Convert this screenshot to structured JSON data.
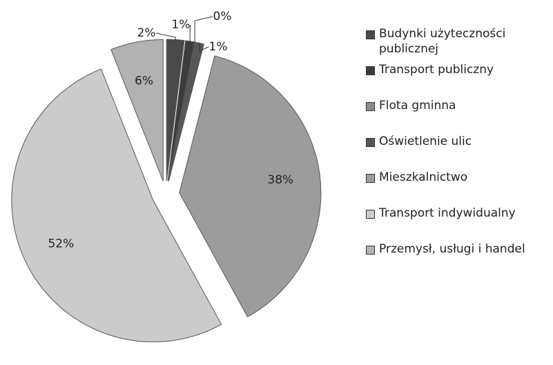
{
  "chart_data": {
    "type": "pie",
    "categories": [
      "Budynki użyteczności publicznej",
      "Transport publiczny",
      "Flota gminna",
      "Oświetlenie ulic",
      "Mieszkalnictwo",
      "Transport indywidualny",
      "Przemysł, usługi i handel"
    ],
    "values": [
      2,
      1,
      0,
      1,
      38,
      52,
      6
    ],
    "value_labels": [
      "2%",
      "1%",
      "0%",
      "1%",
      "38%",
      "52%",
      "6%"
    ],
    "colors": [
      "#4a4a4a",
      "#3c3c3c",
      "#8c8c8c",
      "#575757",
      "#9c9c9c",
      "#cbcbcb",
      "#b2b2b2"
    ],
    "legend": "right"
  }
}
